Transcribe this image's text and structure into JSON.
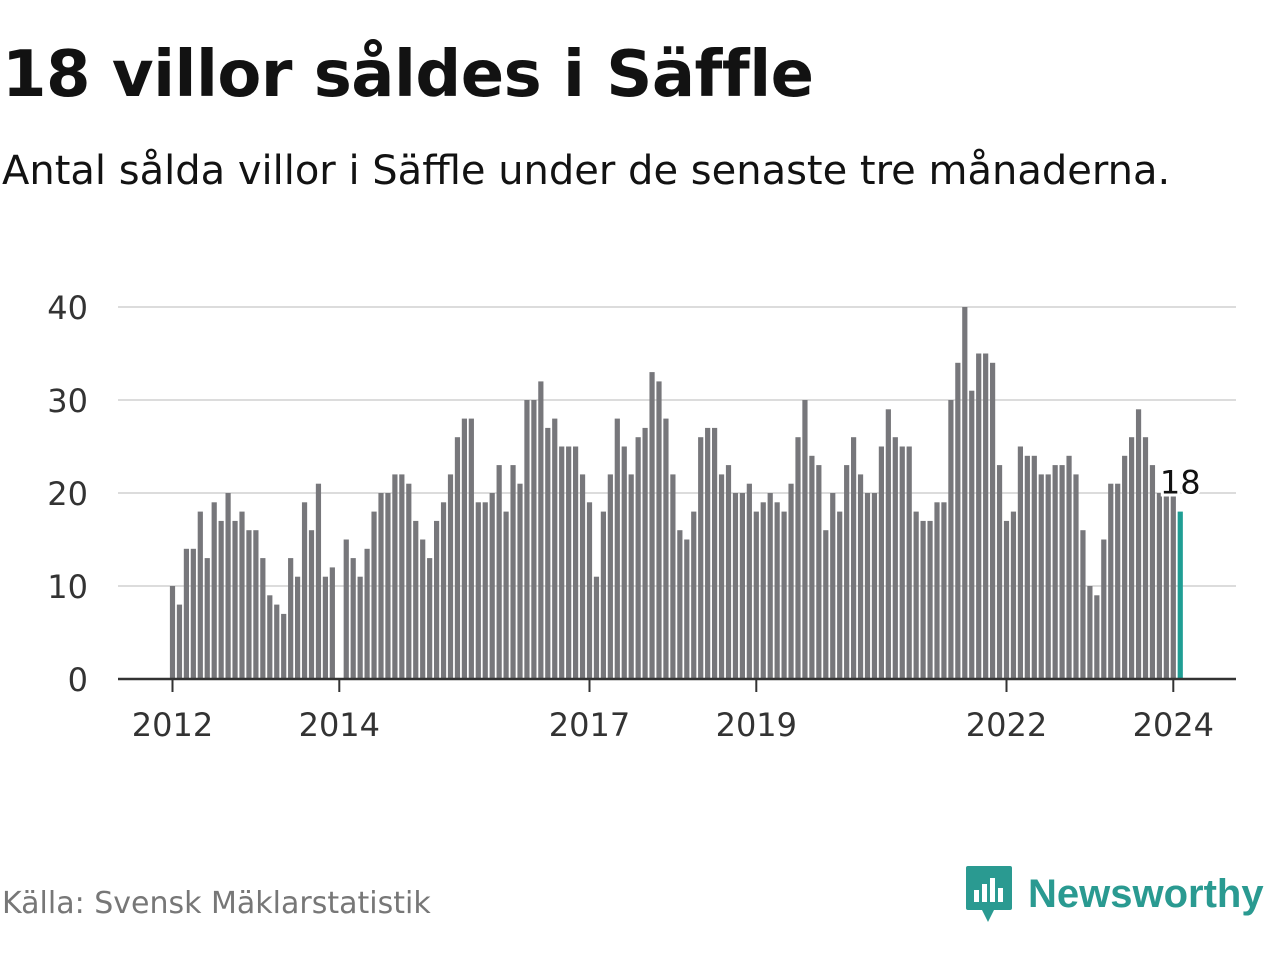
{
  "title": "18 villor såldes i Säffle",
  "subtitle": "Antal sålda villor i Säffle under de senaste tre månaderna.",
  "source": "Källa: Svensk Mäklarstatistik",
  "brand": {
    "name": "Newsworthy",
    "icon": "newsworthy-logo-icon",
    "color": "#2a9a91"
  },
  "colors": {
    "bar": "#77777b",
    "highlight": "#1f9e94",
    "grid": "#dcdcdc",
    "axis": "#333333"
  },
  "chart_data": {
    "type": "bar",
    "title": "18 villor såldes i Säffle",
    "xlabel": "",
    "ylabel": "",
    "ylim": [
      0,
      40
    ],
    "yticks": [
      "0",
      "10",
      "20",
      "30",
      "40"
    ],
    "xticks": [
      {
        "label": "2012",
        "index": 0
      },
      {
        "label": "2014",
        "index": 24
      },
      {
        "label": "2017",
        "index": 60
      },
      {
        "label": "2019",
        "index": 84
      },
      {
        "label": "2022",
        "index": 120
      },
      {
        "label": "2024",
        "index": 144
      }
    ],
    "series": [
      {
        "name": "Antal sålda villor (rullande tre månader)",
        "start": "2012-01",
        "values": [
          10,
          8,
          14,
          14,
          18,
          13,
          19,
          17,
          20,
          17,
          18,
          16,
          16,
          13,
          9,
          8,
          7,
          13,
          11,
          19,
          16,
          21,
          11,
          12,
          null,
          15,
          13,
          11,
          14,
          18,
          20,
          20,
          22,
          22,
          21,
          17,
          15,
          13,
          17,
          19,
          22,
          26,
          28,
          28,
          19,
          19,
          20,
          23,
          18,
          23,
          21,
          30,
          30,
          32,
          27,
          28,
          25,
          25,
          25,
          22,
          19,
          11,
          18,
          22,
          28,
          25,
          22,
          26,
          27,
          33,
          32,
          28,
          22,
          16,
          15,
          18,
          26,
          27,
          27,
          22,
          23,
          20,
          20,
          21,
          18,
          19,
          20,
          19,
          18,
          21,
          26,
          30,
          24,
          23,
          16,
          20,
          18,
          23,
          26,
          22,
          20,
          20,
          25,
          29,
          26,
          25,
          25,
          18,
          17,
          17,
          19,
          19,
          30,
          34,
          40,
          31,
          35,
          35,
          34,
          23,
          17,
          18,
          25,
          24,
          24,
          22,
          22,
          23,
          23,
          24,
          22,
          16,
          10,
          9,
          15,
          21,
          21,
          24,
          26,
          29,
          26,
          23,
          20,
          20,
          20,
          18
        ]
      }
    ],
    "highlight": {
      "index": 145,
      "label": "18"
    }
  }
}
